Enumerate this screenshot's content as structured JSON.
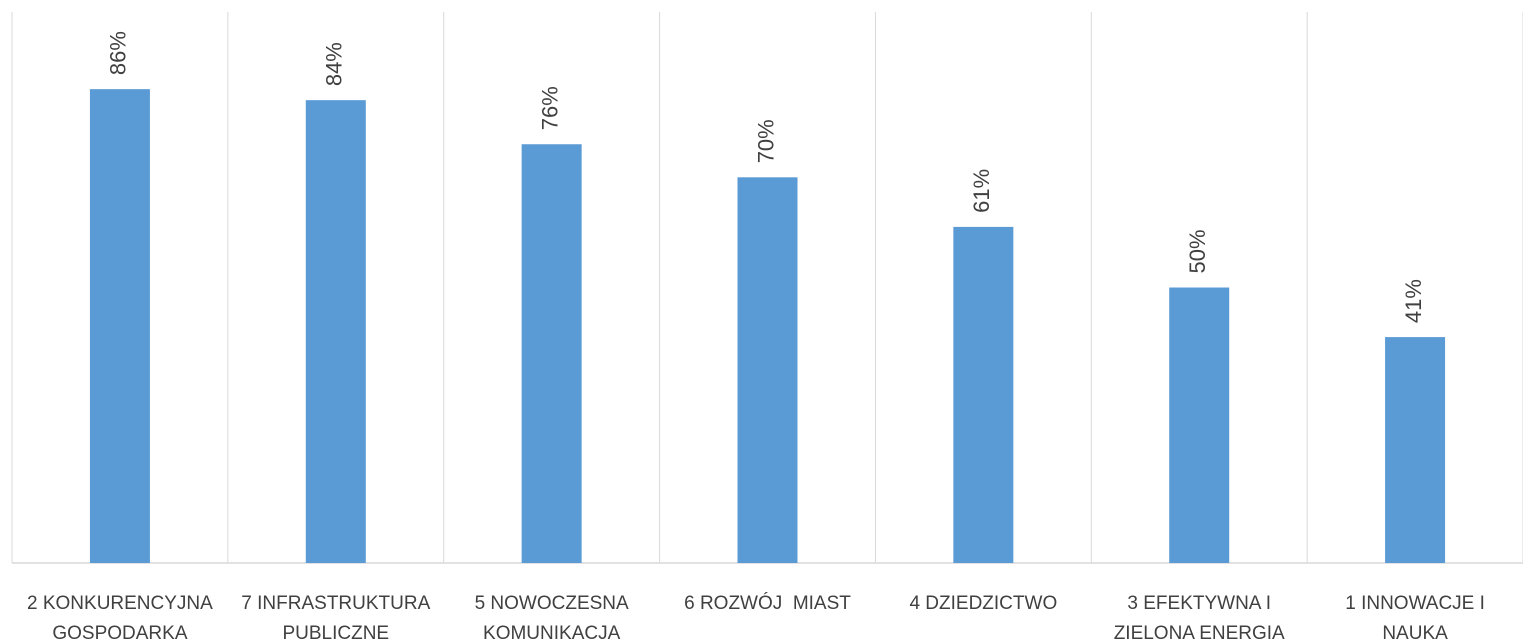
{
  "chart_data": {
    "type": "bar",
    "categories": [
      "2 KONKURENCYJNA GOSPODARKA",
      "7 INFRASTRUKTURA PUBLICZNE",
      "5 NOWOCZESNA KOMUNIKACJA",
      "6 ROZWÓJ  MIAST",
      "4 DZIEDZICTWO",
      "3 EFEKTYWNA I ZIELONA ENERGIA",
      "1 INNOWACJE I NAUKA"
    ],
    "category_label_lines": [
      [
        "2 KONKURENCYJNA",
        "GOSPODARKA"
      ],
      [
        "7 INFRASTRUKTURA",
        "PUBLICZNE"
      ],
      [
        "5 NOWOCZESNA",
        "KOMUNIKACJA"
      ],
      [
        "6 ROZWÓJ  MIAST"
      ],
      [
        "4 DZIEDZICTWO"
      ],
      [
        "3 EFEKTYWNA I",
        "ZIELONA ENERGIA"
      ],
      [
        "1 INNOWACJE I",
        "NAUKA"
      ]
    ],
    "values": [
      86,
      84,
      76,
      70,
      61,
      50,
      41
    ],
    "data_labels": [
      "86%",
      "84%",
      "76%",
      "70%",
      "61%",
      "50%",
      "41%"
    ],
    "ylim": [
      0,
      100
    ],
    "bar_color": "#5B9BD5",
    "gridline_color": "#D9D9D9",
    "grid": "vertical category separators",
    "legend": "none"
  }
}
